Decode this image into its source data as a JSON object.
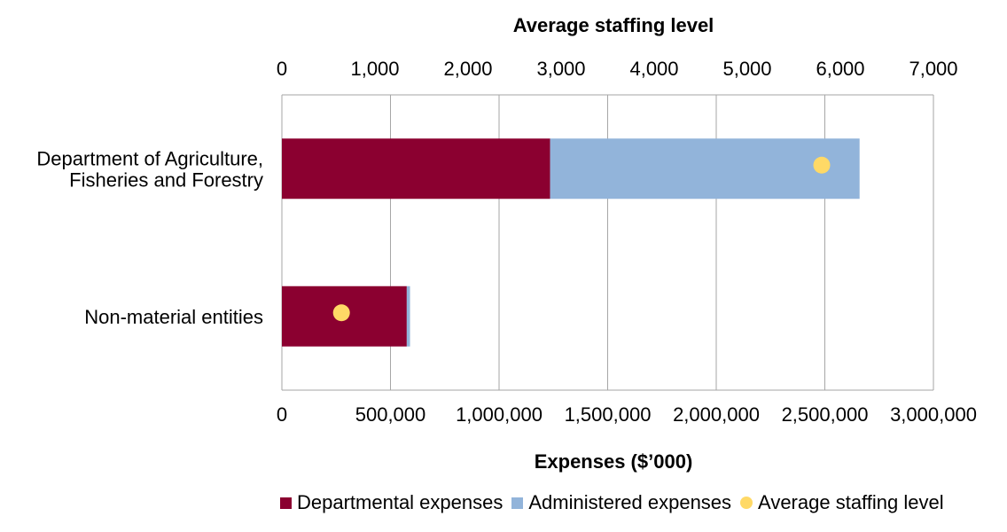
{
  "chart_data": {
    "type": "bar",
    "orientation": "horizontal",
    "stacked": true,
    "categories": [
      "Department of Agriculture,\nFisheries and Forestry",
      "Non-material entities"
    ],
    "series": [
      {
        "name": "Departmental expenses",
        "values": [
          1235000,
          575000
        ],
        "color": "#8B0030"
      },
      {
        "name": "Administered expenses",
        "values": [
          1425000,
          15000
        ],
        "color": "#92B4DA"
      }
    ],
    "secondary_series": {
      "name": "Average staffing level",
      "type": "scatter",
      "values": [
        5800,
        640
      ],
      "color": "#FFD966"
    },
    "title": "Average staffing level",
    "xlabel": "Expenses ($’000)",
    "x2label": "Average staffing level",
    "xlim": [
      0,
      3000000
    ],
    "x2lim": [
      0,
      7000
    ],
    "xticks": [
      "0",
      "500,000",
      "1,000,000",
      "1,500,000",
      "2,000,000",
      "2,500,000",
      "3,000,000"
    ],
    "x2ticks": [
      "0",
      "1,000",
      "2,000",
      "3,000",
      "4,000",
      "5,000",
      "6,000",
      "7,000"
    ],
    "grid": true,
    "legend_position": "bottom"
  }
}
